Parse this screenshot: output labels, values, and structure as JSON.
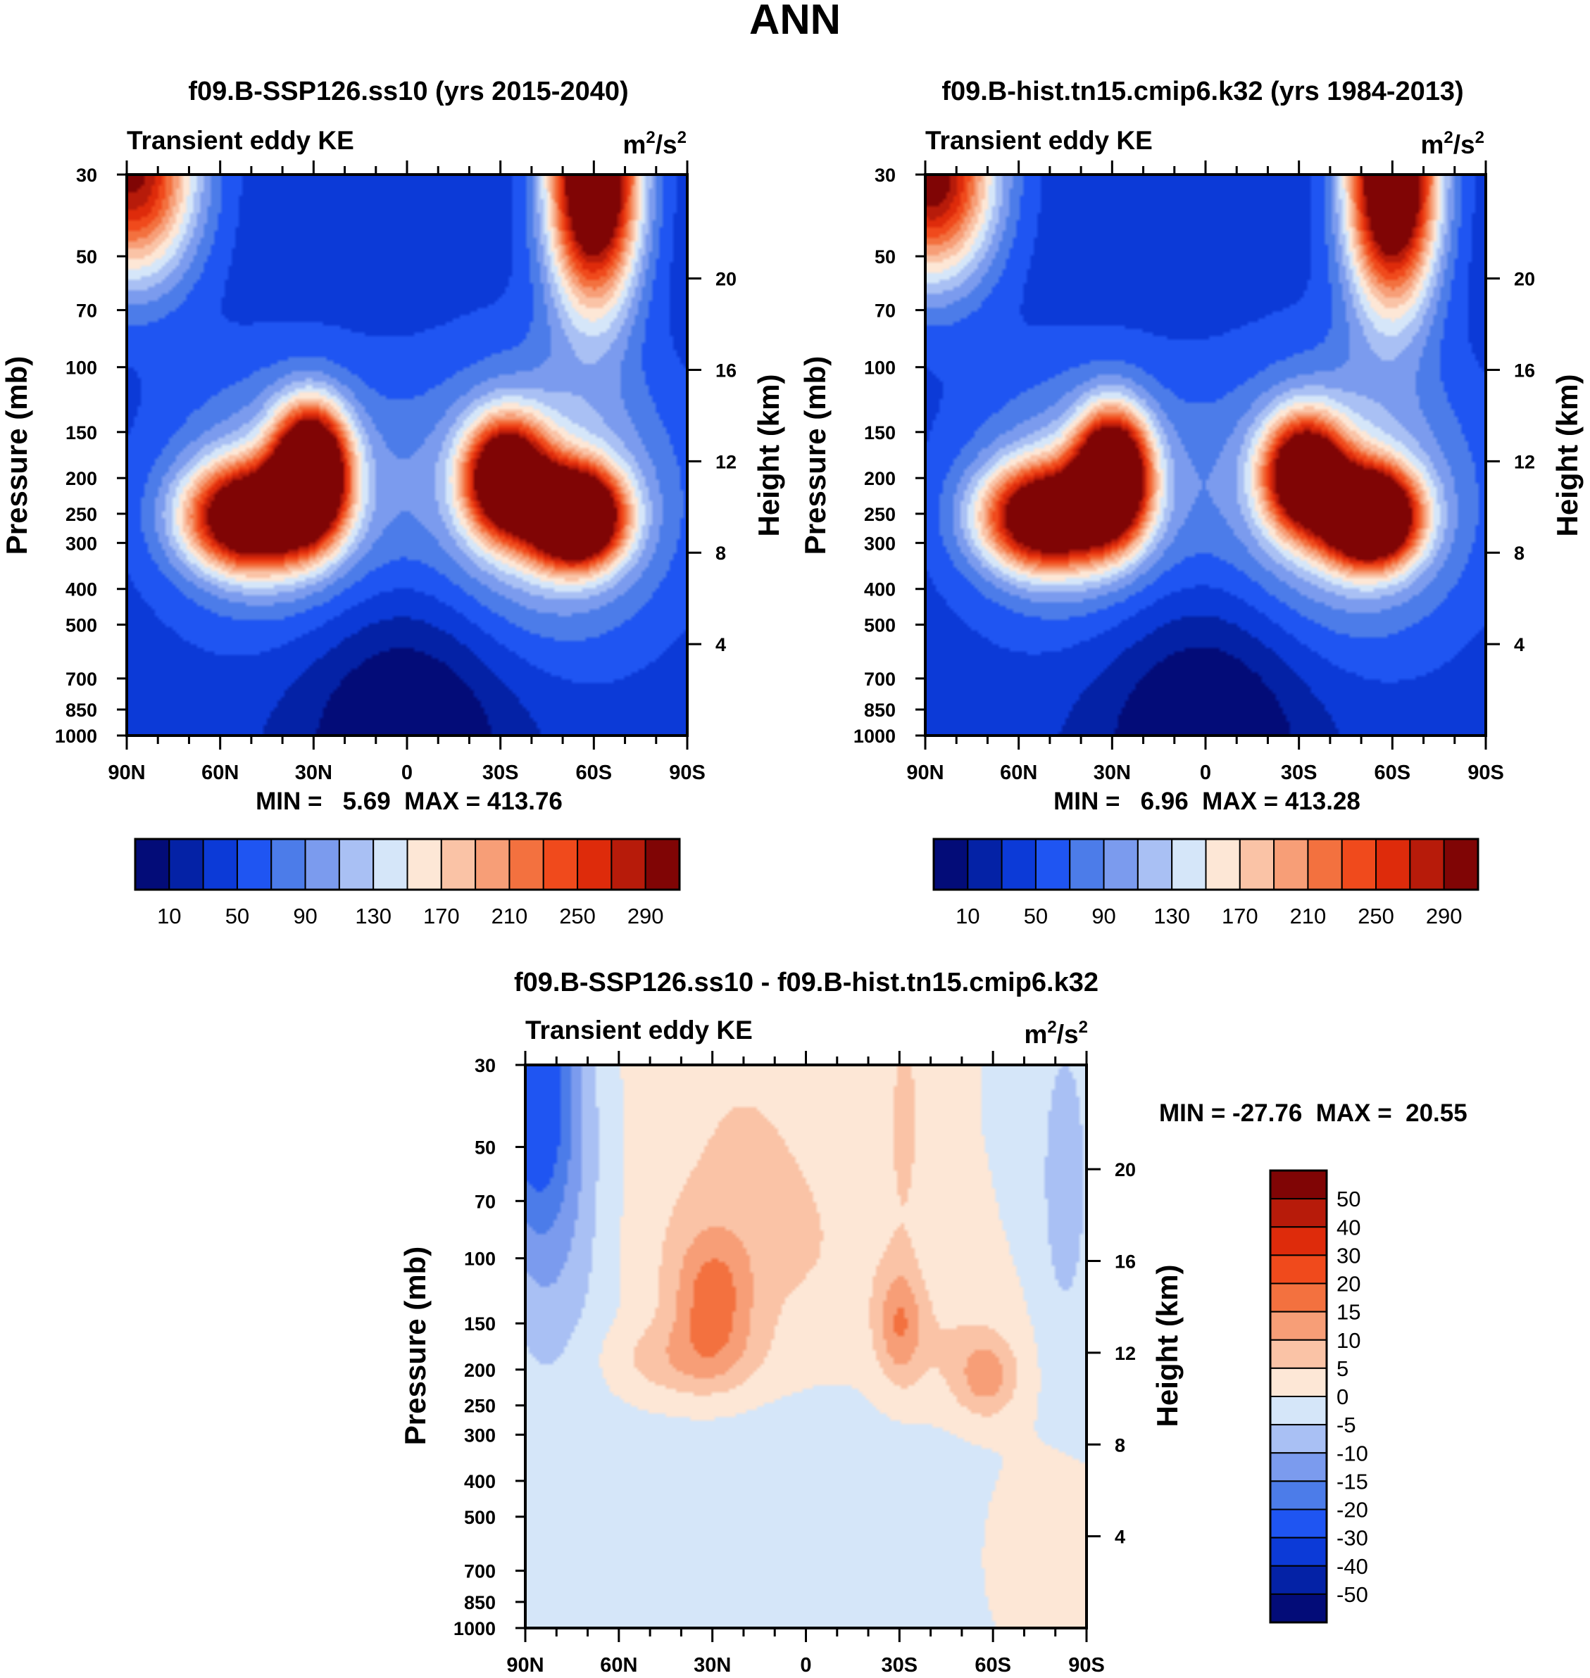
{
  "figure": {
    "title": "ANN"
  },
  "chart_data": [
    {
      "id": "top_left",
      "type": "heatmap",
      "title": "f09.B-SSP126.ss10 (yrs 2015-2040)",
      "left_string": "Transient eddy KE",
      "units_base": "m",
      "units_exp1": "2",
      "units_sep": "/s",
      "units_exp2": "2",
      "xlabel": "",
      "ylabel": "Pressure (mb)",
      "y2label": "Height (km)",
      "x_ticks": [
        {
          "label": "90N",
          "value": -90
        },
        {
          "label": "60N",
          "value": -60
        },
        {
          "label": "30N",
          "value": -30
        },
        {
          "label": "0",
          "value": 0
        },
        {
          "label": "30S",
          "value": 30
        },
        {
          "label": "60S",
          "value": 60
        },
        {
          "label": "90S",
          "value": 90
        }
      ],
      "y_ticks": [
        30,
        50,
        70,
        100,
        150,
        200,
        250,
        300,
        400,
        500,
        700,
        850,
        1000
      ],
      "y2_ticks": [
        4,
        8,
        12,
        16,
        20
      ],
      "stats_text": "MIN =   5.69  MAX = 413.76",
      "levels": [
        10,
        30,
        50,
        70,
        90,
        110,
        130,
        150,
        170,
        190,
        210,
        230,
        250,
        270,
        290
      ],
      "colorbar_labels": [
        "10",
        "50",
        "90",
        "130",
        "170",
        "210",
        "250",
        "290"
      ],
      "colorbar_colors": [
        "#030c78",
        "#0422a6",
        "#0c3ad7",
        "#1f55f2",
        "#4c7ce9",
        "#7b9bee",
        "#a9c0f4",
        "#d5e6f9",
        "#fde7d6",
        "#fac3a6",
        "#f79e77",
        "#f3713f",
        "#f04a1c",
        "#de2b0b",
        "#b71b0a",
        "#800505"
      ],
      "features": [
        {
          "lat": -31,
          "p": 190,
          "amp": 400,
          "sx": 8,
          "sy": 0.26
        },
        {
          "lat": -50,
          "p": 255,
          "amp": 320,
          "sx": 14,
          "sy": 0.22
        },
        {
          "lat": -40,
          "p": 230,
          "amp": 90,
          "sx": 26,
          "sy": 0.55
        },
        {
          "lat": 54,
          "p": 255,
          "amp": 413,
          "sx": 10,
          "sy": 0.2
        },
        {
          "lat": 32,
          "p": 200,
          "amp": 330,
          "sx": 9,
          "sy": 0.24
        },
        {
          "lat": 44,
          "p": 230,
          "amp": 110,
          "sx": 28,
          "sy": 0.6
        },
        {
          "lat": 60,
          "p": 30,
          "amp": 380,
          "sx": 10,
          "sy": 0.55
        },
        {
          "lat": -88,
          "p": 30,
          "amp": 260,
          "sx": 14,
          "sy": 0.45
        },
        {
          "lat": 0,
          "p": 1000,
          "amp": -60,
          "sx": 25,
          "sy": 0.7
        }
      ]
    },
    {
      "id": "top_right",
      "type": "heatmap",
      "title": "f09.B-hist.tn15.cmip6.k32 (yrs 1984-2013)",
      "left_string": "Transient eddy KE",
      "units_base": "m",
      "units_exp1": "2",
      "units_sep": "/s",
      "units_exp2": "2",
      "xlabel": "",
      "ylabel": "Pressure (mb)",
      "y2label": "Height (km)",
      "x_ticks": [
        {
          "label": "90N",
          "value": -90
        },
        {
          "label": "60N",
          "value": -60
        },
        {
          "label": "30N",
          "value": -30
        },
        {
          "label": "0",
          "value": 0
        },
        {
          "label": "30S",
          "value": 30
        },
        {
          "label": "60S",
          "value": 60
        },
        {
          "label": "90S",
          "value": 90
        }
      ],
      "y_ticks": [
        30,
        50,
        70,
        100,
        150,
        200,
        250,
        300,
        400,
        500,
        700,
        850,
        1000
      ],
      "y2_ticks": [
        4,
        8,
        12,
        16,
        20
      ],
      "stats_text": "MIN =   6.96  MAX = 413.28",
      "levels": [
        10,
        30,
        50,
        70,
        90,
        110,
        130,
        150,
        170,
        190,
        210,
        230,
        250,
        270,
        290
      ],
      "colorbar_labels": [
        "10",
        "50",
        "90",
        "130",
        "170",
        "210",
        "250",
        "290"
      ],
      "colorbar_colors": [
        "#030c78",
        "#0422a6",
        "#0c3ad7",
        "#1f55f2",
        "#4c7ce9",
        "#7b9bee",
        "#a9c0f4",
        "#d5e6f9",
        "#fde7d6",
        "#fac3a6",
        "#f79e77",
        "#f3713f",
        "#f04a1c",
        "#de2b0b",
        "#b71b0a",
        "#800505"
      ],
      "features": [
        {
          "lat": -30,
          "p": 195,
          "amp": 380,
          "sx": 8,
          "sy": 0.26
        },
        {
          "lat": -51,
          "p": 255,
          "amp": 310,
          "sx": 14,
          "sy": 0.22
        },
        {
          "lat": -40,
          "p": 230,
          "amp": 85,
          "sx": 26,
          "sy": 0.55
        },
        {
          "lat": 53,
          "p": 255,
          "amp": 413,
          "sx": 10,
          "sy": 0.2
        },
        {
          "lat": 32,
          "p": 195,
          "amp": 320,
          "sx": 9,
          "sy": 0.24
        },
        {
          "lat": 44,
          "p": 230,
          "amp": 105,
          "sx": 28,
          "sy": 0.6
        },
        {
          "lat": 60,
          "p": 30,
          "amp": 380,
          "sx": 10,
          "sy": 0.55
        },
        {
          "lat": -88,
          "p": 30,
          "amp": 280,
          "sx": 14,
          "sy": 0.45
        },
        {
          "lat": 0,
          "p": 1000,
          "amp": -60,
          "sx": 25,
          "sy": 0.7
        }
      ]
    },
    {
      "id": "bottom_diff",
      "type": "heatmap",
      "title": "f09.B-SSP126.ss10 - f09.B-hist.tn15.cmip6.k32",
      "left_string": "Transient eddy KE",
      "units_base": "m",
      "units_exp1": "2",
      "units_sep": "/s",
      "units_exp2": "2",
      "xlabel": "",
      "ylabel": "Pressure (mb)",
      "y2label": "Height (km)",
      "x_ticks": [
        {
          "label": "90N",
          "value": -90
        },
        {
          "label": "60N",
          "value": -60
        },
        {
          "label": "30N",
          "value": -30
        },
        {
          "label": "0",
          "value": 0
        },
        {
          "label": "30S",
          "value": 30
        },
        {
          "label": "60S",
          "value": 60
        },
        {
          "label": "90S",
          "value": 90
        }
      ],
      "y_ticks": [
        30,
        50,
        70,
        100,
        150,
        200,
        250,
        300,
        400,
        500,
        700,
        850,
        1000
      ],
      "y2_ticks": [
        4,
        8,
        12,
        16,
        20
      ],
      "stats_text": "MIN = -27.76  MAX =  20.55",
      "levels": [
        -50,
        -40,
        -30,
        -20,
        -15,
        -10,
        -5,
        0,
        5,
        10,
        15,
        20,
        30,
        40,
        50
      ],
      "colorbar_labels": [
        "50",
        "40",
        "30",
        "20",
        "15",
        "10",
        "5",
        "0",
        "-5",
        "-10",
        "-15",
        "-20",
        "-30",
        "-40",
        "-50"
      ],
      "colorbar_colors": [
        "#030c78",
        "#0422a6",
        "#0c3ad7",
        "#1f55f2",
        "#4c7ce9",
        "#7b9bee",
        "#a9c0f4",
        "#d5e6f9",
        "#fde7d6",
        "#fac3a6",
        "#f79e77",
        "#f3713f",
        "#f04a1c",
        "#de2b0b",
        "#b71b0a",
        "#800505"
      ],
      "features": [
        {
          "lat": -88,
          "p": 30,
          "amp": -22,
          "sx": 9,
          "sy": 0.7
        },
        {
          "lat": -80,
          "p": 60,
          "amp": -10,
          "sx": 12,
          "sy": 0.9
        },
        {
          "lat": -30,
          "p": 130,
          "amp": 14,
          "sx": 9,
          "sy": 0.3
        },
        {
          "lat": -40,
          "p": 190,
          "amp": 8,
          "sx": 18,
          "sy": 0.18
        },
        {
          "lat": -10,
          "p": 110,
          "amp": 5,
          "sx": 35,
          "sy": 0.5
        },
        {
          "lat": 30,
          "p": 150,
          "amp": 12,
          "sx": 5,
          "sy": 0.25
        },
        {
          "lat": 58,
          "p": 210,
          "amp": 11,
          "sx": 7,
          "sy": 0.18
        },
        {
          "lat": 45,
          "p": 180,
          "amp": 5,
          "sx": 16,
          "sy": 0.3
        },
        {
          "lat": 32,
          "p": 40,
          "amp": 5,
          "sx": 5,
          "sy": 0.6
        },
        {
          "lat": -20,
          "p": 40,
          "amp": 5,
          "sx": 30,
          "sy": 0.8
        },
        {
          "lat": 75,
          "p": 650,
          "amp": 6,
          "sx": 12,
          "sy": 0.4
        },
        {
          "lat": 83,
          "p": 60,
          "amp": -8,
          "sx": 6,
          "sy": 0.7
        },
        {
          "lat": -10,
          "p": 700,
          "amp": -3.5,
          "sx": 60,
          "sy": 1.5
        }
      ]
    }
  ]
}
